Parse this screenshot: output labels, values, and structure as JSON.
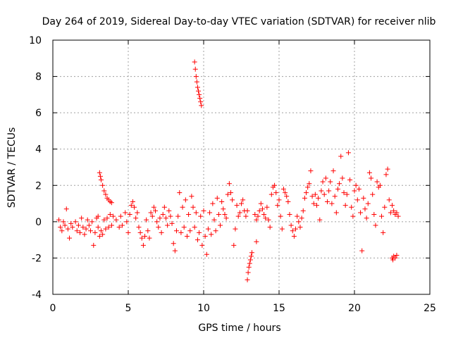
{
  "chart_data": {
    "type": "scatter",
    "title": "Day 264 of 2019, Sidereal Day-to-day VTEC variation (SDTVAR) for receiver nlib",
    "xlabel": "GPS time / hours",
    "ylabel": "SDTVAR / TECUs",
    "xlim": [
      0,
      25
    ],
    "ylim": [
      -4,
      10
    ],
    "xticks": [
      0,
      5,
      10,
      15,
      20,
      25
    ],
    "yticks": [
      -4,
      -2,
      0,
      2,
      4,
      6,
      8,
      10
    ],
    "xtick_labels": [
      "0",
      "5",
      "10",
      "15",
      "20",
      "25"
    ],
    "ytick_labels": [
      "-4",
      "-2",
      "0",
      "2",
      "4",
      "6",
      "8",
      "10"
    ],
    "grid": true,
    "marker": "+",
    "color": "#ff0000",
    "series": [
      {
        "name": "SDTVAR",
        "points": [
          [
            0.4,
            0.1
          ],
          [
            0.5,
            -0.3
          ],
          [
            0.6,
            -0.5
          ],
          [
            0.7,
            0.0
          ],
          [
            0.8,
            -0.2
          ],
          [
            0.9,
            0.7
          ],
          [
            1.0,
            -0.4
          ],
          [
            1.1,
            -0.9
          ],
          [
            1.2,
            -0.1
          ],
          [
            1.3,
            -0.3
          ],
          [
            1.5,
            0.0
          ],
          [
            1.6,
            -0.5
          ],
          [
            1.7,
            -0.2
          ],
          [
            1.8,
            -0.6
          ],
          [
            1.9,
            0.2
          ],
          [
            2.0,
            -0.3
          ],
          [
            2.1,
            -0.7
          ],
          [
            2.2,
            -0.4
          ],
          [
            2.3,
            0.1
          ],
          [
            2.4,
            -0.2
          ],
          [
            2.5,
            -0.5
          ],
          [
            2.6,
            0.0
          ],
          [
            2.7,
            -1.3
          ],
          [
            2.8,
            -0.6
          ],
          [
            2.9,
            0.2
          ],
          [
            3.0,
            -0.3
          ],
          [
            3.0,
            0.3
          ],
          [
            3.1,
            2.7
          ],
          [
            3.15,
            2.5
          ],
          [
            3.2,
            2.3
          ],
          [
            3.3,
            2.0
          ],
          [
            3.4,
            1.7
          ],
          [
            3.5,
            1.5
          ],
          [
            3.6,
            1.3
          ],
          [
            3.7,
            1.2
          ],
          [
            3.8,
            1.1
          ],
          [
            3.9,
            1.05
          ],
          [
            3.1,
            -0.8
          ],
          [
            3.2,
            -0.5
          ],
          [
            3.3,
            -0.7
          ],
          [
            3.4,
            0.1
          ],
          [
            3.5,
            -0.4
          ],
          [
            3.6,
            0.2
          ],
          [
            3.7,
            -0.3
          ],
          [
            3.8,
            0.4
          ],
          [
            3.9,
            -0.2
          ],
          [
            4.0,
            0.3
          ],
          [
            4.2,
            0.1
          ],
          [
            4.4,
            -0.3
          ],
          [
            4.5,
            0.3
          ],
          [
            4.6,
            -0.2
          ],
          [
            4.8,
            0.5
          ],
          [
            4.9,
            0.0
          ],
          [
            5.0,
            -0.6
          ],
          [
            5.1,
            0.4
          ],
          [
            5.2,
            0.9
          ],
          [
            5.3,
            1.1
          ],
          [
            5.4,
            0.8
          ],
          [
            5.5,
            0.2
          ],
          [
            5.6,
            0.5
          ],
          [
            5.7,
            -0.3
          ],
          [
            5.8,
            -0.6
          ],
          [
            5.9,
            -0.9
          ],
          [
            6.0,
            -1.3
          ],
          [
            6.1,
            -0.8
          ],
          [
            6.2,
            0.1
          ],
          [
            6.3,
            -0.5
          ],
          [
            6.4,
            -0.9
          ],
          [
            6.5,
            0.5
          ],
          [
            6.6,
            0.3
          ],
          [
            6.7,
            0.8
          ],
          [
            6.8,
            0.6
          ],
          [
            6.9,
            0.0
          ],
          [
            7.0,
            -0.3
          ],
          [
            7.1,
            0.2
          ],
          [
            7.2,
            -0.6
          ],
          [
            7.3,
            0.4
          ],
          [
            7.4,
            0.8
          ],
          [
            7.5,
            0.2
          ],
          [
            7.6,
            -0.2
          ],
          [
            7.7,
            0.6
          ],
          [
            7.8,
            0.3
          ],
          [
            7.9,
            -0.1
          ],
          [
            8.0,
            -1.2
          ],
          [
            8.1,
            -1.6
          ],
          [
            8.2,
            -0.5
          ],
          [
            8.3,
            0.3
          ],
          [
            8.4,
            1.6
          ],
          [
            8.5,
            -0.6
          ],
          [
            8.6,
            0.8
          ],
          [
            8.7,
            -0.3
          ],
          [
            8.8,
            1.2
          ],
          [
            8.9,
            -0.8
          ],
          [
            9.0,
            0.4
          ],
          [
            9.1,
            -0.5
          ],
          [
            9.2,
            1.4
          ],
          [
            9.3,
            0.8
          ],
          [
            9.4,
            8.8
          ],
          [
            9.45,
            8.4
          ],
          [
            9.5,
            8.0
          ],
          [
            9.55,
            7.7
          ],
          [
            9.6,
            7.4
          ],
          [
            9.65,
            7.2
          ],
          [
            9.7,
            7.0
          ],
          [
            9.75,
            6.8
          ],
          [
            9.8,
            6.6
          ],
          [
            9.85,
            6.4
          ],
          [
            9.4,
            -0.3
          ],
          [
            9.5,
            0.5
          ],
          [
            9.6,
            -1.0
          ],
          [
            9.7,
            -0.6
          ],
          [
            9.8,
            0.3
          ],
          [
            9.9,
            -1.3
          ],
          [
            10.0,
            0.6
          ],
          [
            10.1,
            -0.8
          ],
          [
            10.2,
            -1.8
          ],
          [
            10.3,
            -0.4
          ],
          [
            10.4,
            0.5
          ],
          [
            10.5,
            -0.7
          ],
          [
            10.6,
            1.0
          ],
          [
            10.7,
            0.1
          ],
          [
            10.8,
            -0.5
          ],
          [
            10.9,
            1.3
          ],
          [
            11.0,
            0.4
          ],
          [
            11.1,
            -0.2
          ],
          [
            11.2,
            1.1
          ],
          [
            11.3,
            0.7
          ],
          [
            11.4,
            0.4
          ],
          [
            11.5,
            0.2
          ],
          [
            11.6,
            1.5
          ],
          [
            11.7,
            2.1
          ],
          [
            11.8,
            1.6
          ],
          [
            11.9,
            1.2
          ],
          [
            12.0,
            -1.3
          ],
          [
            12.1,
            -0.4
          ],
          [
            12.2,
            0.9
          ],
          [
            12.3,
            0.3
          ],
          [
            12.4,
            0.5
          ],
          [
            12.5,
            1.0
          ],
          [
            12.6,
            1.2
          ],
          [
            12.7,
            0.6
          ],
          [
            12.8,
            0.3
          ],
          [
            12.9,
            0.6
          ],
          [
            12.9,
            -3.2
          ],
          [
            12.95,
            -2.8
          ],
          [
            13.0,
            -2.5
          ],
          [
            13.05,
            -2.3
          ],
          [
            13.1,
            -2.1
          ],
          [
            13.15,
            -1.9
          ],
          [
            13.2,
            -1.7
          ],
          [
            13.5,
            -1.1
          ],
          [
            13.4,
            0.4
          ],
          [
            13.5,
            0.1
          ],
          [
            13.6,
            0.3
          ],
          [
            13.7,
            0.6
          ],
          [
            13.8,
            1.0
          ],
          [
            13.9,
            0.7
          ],
          [
            14.0,
            0.4
          ],
          [
            14.1,
            0.2
          ],
          [
            14.2,
            0.8
          ],
          [
            14.3,
            0.1
          ],
          [
            14.4,
            -0.3
          ],
          [
            14.5,
            1.5
          ],
          [
            14.6,
            1.9
          ],
          [
            14.7,
            2.0
          ],
          [
            14.8,
            1.6
          ],
          [
            14.9,
            0.9
          ],
          [
            15.0,
            1.2
          ],
          [
            15.1,
            0.3
          ],
          [
            15.2,
            -0.4
          ],
          [
            15.3,
            1.8
          ],
          [
            15.4,
            1.6
          ],
          [
            15.5,
            1.4
          ],
          [
            15.6,
            1.1
          ],
          [
            15.7,
            0.4
          ],
          [
            15.8,
            -0.2
          ],
          [
            15.9,
            -0.5
          ],
          [
            16.0,
            -0.8
          ],
          [
            16.1,
            -0.4
          ],
          [
            16.2,
            0.3
          ],
          [
            16.3,
            0.0
          ],
          [
            16.4,
            -0.3
          ],
          [
            16.5,
            0.2
          ],
          [
            16.6,
            0.6
          ],
          [
            16.7,
            1.3
          ],
          [
            16.8,
            1.6
          ],
          [
            16.9,
            1.9
          ],
          [
            17.0,
            2.1
          ],
          [
            17.1,
            2.8
          ],
          [
            17.2,
            1.4
          ],
          [
            17.3,
            1.0
          ],
          [
            17.4,
            1.5
          ],
          [
            17.5,
            0.9
          ],
          [
            17.6,
            1.3
          ],
          [
            17.7,
            0.1
          ],
          [
            17.8,
            1.7
          ],
          [
            17.9,
            2.2
          ],
          [
            18.0,
            1.5
          ],
          [
            18.1,
            2.4
          ],
          [
            18.2,
            1.1
          ],
          [
            18.3,
            1.7
          ],
          [
            18.4,
            2.2
          ],
          [
            18.5,
            1.0
          ],
          [
            18.6,
            2.8
          ],
          [
            18.7,
            1.4
          ],
          [
            18.8,
            0.5
          ],
          [
            18.9,
            1.8
          ],
          [
            19.0,
            2.1
          ],
          [
            19.1,
            3.6
          ],
          [
            19.2,
            2.4
          ],
          [
            19.3,
            1.6
          ],
          [
            19.4,
            0.9
          ],
          [
            19.5,
            1.5
          ],
          [
            19.6,
            3.8
          ],
          [
            19.7,
            2.3
          ],
          [
            19.8,
            0.8
          ],
          [
            19.9,
            0.3
          ],
          [
            20.0,
            1.7
          ],
          [
            20.1,
            2.0
          ],
          [
            20.2,
            1.2
          ],
          [
            20.3,
            1.8
          ],
          [
            20.4,
            0.5
          ],
          [
            20.5,
            -1.6
          ],
          [
            20.6,
            1.3
          ],
          [
            20.7,
            0.7
          ],
          [
            20.8,
            0.2
          ],
          [
            20.9,
            1.0
          ],
          [
            21.0,
            2.7
          ],
          [
            21.1,
            2.4
          ],
          [
            21.2,
            1.5
          ],
          [
            21.3,
            0.4
          ],
          [
            21.4,
            -0.2
          ],
          [
            21.5,
            2.2
          ],
          [
            21.6,
            1.9
          ],
          [
            21.7,
            2.0
          ],
          [
            21.8,
            0.3
          ],
          [
            21.9,
            -0.6
          ],
          [
            22.0,
            0.8
          ],
          [
            22.1,
            2.6
          ],
          [
            22.2,
            2.9
          ],
          [
            22.3,
            1.2
          ],
          [
            22.4,
            0.5
          ],
          [
            22.5,
            -2.0
          ],
          [
            22.55,
            -2.1
          ],
          [
            22.6,
            -1.9
          ],
          [
            22.7,
            -2.0
          ],
          [
            22.8,
            -1.85
          ],
          [
            22.5,
            0.9
          ],
          [
            22.6,
            0.6
          ],
          [
            22.7,
            0.4
          ],
          [
            22.8,
            0.5
          ],
          [
            22.9,
            0.3
          ]
        ]
      }
    ]
  }
}
